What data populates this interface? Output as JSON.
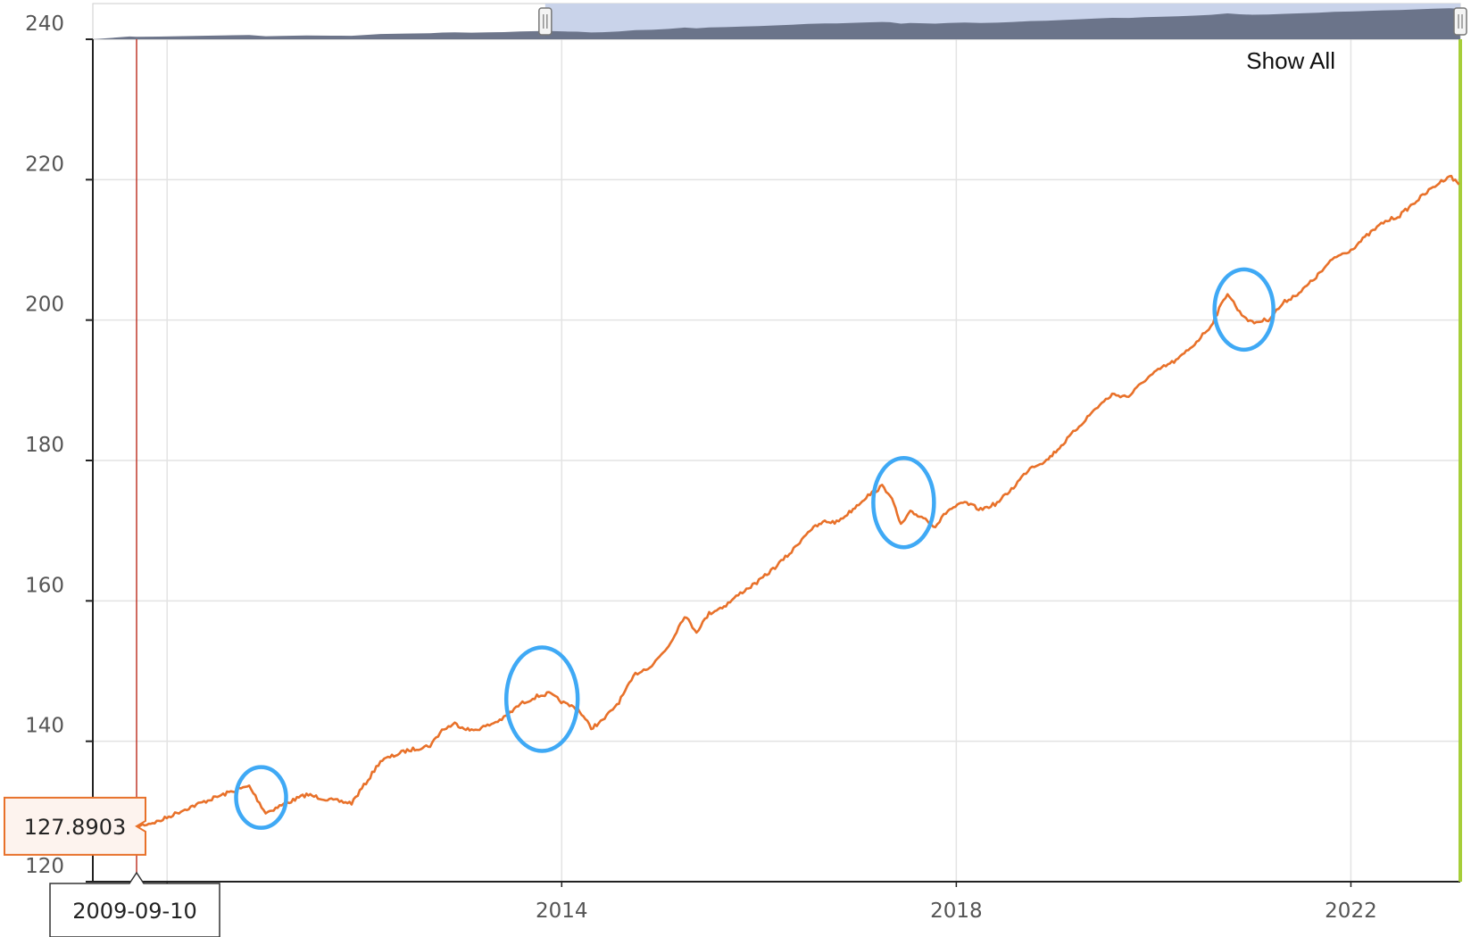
{
  "chart_data": {
    "type": "line",
    "series": [
      {
        "color": "#e8712a",
        "points": [
          [
            "2009-08-15",
            129.0
          ],
          [
            "2009-09-10",
            127.8903
          ],
          [
            "2009-12-01",
            128.6
          ],
          [
            "2010-03-01",
            130.2
          ],
          [
            "2010-06-01",
            131.6
          ],
          [
            "2010-09-01",
            132.9
          ],
          [
            "2010-11-01",
            133.6
          ],
          [
            "2011-01-01",
            129.8
          ],
          [
            "2011-03-01",
            130.9
          ],
          [
            "2011-06-01",
            132.4
          ],
          [
            "2011-09-01",
            131.6
          ],
          [
            "2011-11-15",
            131.2
          ],
          [
            "2012-01-15",
            134.5
          ],
          [
            "2012-03-01",
            137.2
          ],
          [
            "2012-06-01",
            138.6
          ],
          [
            "2012-09-01",
            139.4
          ],
          [
            "2012-10-15",
            141.6
          ],
          [
            "2012-12-01",
            142.5
          ],
          [
            "2013-02-01",
            141.5
          ],
          [
            "2013-04-01",
            142.2
          ],
          [
            "2013-06-01",
            143.3
          ],
          [
            "2013-08-01",
            145.3
          ],
          [
            "2013-10-01",
            146.4
          ],
          [
            "2013-11-15",
            146.8
          ],
          [
            "2014-01-15",
            145.3
          ],
          [
            "2014-03-01",
            144.7
          ],
          [
            "2014-04-20",
            141.9
          ],
          [
            "2014-06-01",
            142.9
          ],
          [
            "2014-08-01",
            145.6
          ],
          [
            "2014-10-01",
            149.6
          ],
          [
            "2014-12-01",
            150.8
          ],
          [
            "2015-02-01",
            153.6
          ],
          [
            "2015-04-01",
            157.9
          ],
          [
            "2015-05-15",
            155.6
          ],
          [
            "2015-07-01",
            158.2
          ],
          [
            "2015-09-01",
            159.4
          ],
          [
            "2015-11-01",
            161.3
          ],
          [
            "2016-01-01",
            162.8
          ],
          [
            "2016-03-01",
            164.8
          ],
          [
            "2016-05-01",
            167.0
          ],
          [
            "2016-07-01",
            169.9
          ],
          [
            "2016-09-01",
            171.3
          ],
          [
            "2016-10-15",
            171.2
          ],
          [
            "2016-12-01",
            172.6
          ],
          [
            "2017-02-01",
            174.8
          ],
          [
            "2017-04-01",
            176.3
          ],
          [
            "2017-05-01",
            175.2
          ],
          [
            "2017-06-10",
            170.8
          ],
          [
            "2017-07-15",
            172.6
          ],
          [
            "2017-09-01",
            171.9
          ],
          [
            "2017-10-15",
            170.6
          ],
          [
            "2017-12-01",
            172.9
          ],
          [
            "2018-02-01",
            174.0
          ],
          [
            "2018-04-01",
            173.0
          ],
          [
            "2018-06-01",
            173.9
          ],
          [
            "2018-08-01",
            176.2
          ],
          [
            "2018-10-01",
            179.0
          ],
          [
            "2018-12-01",
            180.0
          ],
          [
            "2019-02-01",
            182.4
          ],
          [
            "2019-04-01",
            184.9
          ],
          [
            "2019-06-01",
            187.4
          ],
          [
            "2019-08-01",
            189.4
          ],
          [
            "2019-10-01",
            189.1
          ],
          [
            "2019-12-01",
            191.5
          ],
          [
            "2020-02-01",
            193.2
          ],
          [
            "2020-04-01",
            194.4
          ],
          [
            "2020-06-01",
            196.6
          ],
          [
            "2020-08-01",
            199.2
          ],
          [
            "2020-10-01",
            203.9
          ],
          [
            "2020-11-15",
            201.1
          ],
          [
            "2021-01-01",
            199.6
          ],
          [
            "2021-03-01",
            200.1
          ],
          [
            "2021-05-01",
            202.6
          ],
          [
            "2021-07-01",
            204.1
          ],
          [
            "2021-09-01",
            206.4
          ],
          [
            "2021-11-01",
            208.9
          ],
          [
            "2022-01-01",
            210.0
          ],
          [
            "2022-03-01",
            212.0
          ],
          [
            "2022-05-01",
            213.9
          ],
          [
            "2022-07-01",
            214.9
          ],
          [
            "2022-09-01",
            217.0
          ],
          [
            "2022-11-01",
            218.9
          ],
          [
            "2023-01-01",
            220.6
          ],
          [
            "2023-02-05",
            219.3
          ]
        ]
      }
    ],
    "xlim": [
      "2009-04-01",
      "2023-02-10"
    ],
    "ylim": [
      120,
      240
    ],
    "ytick_values": [
      120,
      140,
      160,
      180,
      200,
      220,
      240
    ],
    "ytick_labels": [
      "120",
      "140",
      "160",
      "180",
      "200",
      "220",
      "240"
    ],
    "xtick_values": [
      "2010-01-01",
      "2014-01-01",
      "2018-01-01",
      "2022-01-01"
    ],
    "xtick_labels": [
      "",
      "2014",
      "2018",
      "2022"
    ],
    "grid": true,
    "crosshair": {
      "x": "2009-09-10",
      "y": 127.8903,
      "value_label": "127.8903",
      "date_label": "2009-09-10"
    },
    "end_marker_x": "2023-02-10",
    "highlight_circles": [
      {
        "center_x": "2010-12-15",
        "center_y": 132.0
      },
      {
        "center_x": "2013-10-20",
        "center_y": 146.0
      },
      {
        "center_x": "2017-06-20",
        "center_y": 174.0
      },
      {
        "center_x": "2020-12-01",
        "center_y": 201.5
      }
    ],
    "navigator": {
      "selection_start": "2013-11-01",
      "selection_end": "2023-02-10"
    },
    "controls": {
      "show_all_label": "Show All"
    },
    "colors": {
      "line": "#e8712a",
      "crosshair": "#c0392b",
      "end_marker": "#a6ce39",
      "highlight": "#3fa9f5",
      "grid": "#e3e3e3",
      "navigator_fill": "#666f85",
      "navigator_selection": "#c9d3ea",
      "value_label_fill": "#fdf3ee",
      "value_label_border": "#e8712a"
    }
  }
}
